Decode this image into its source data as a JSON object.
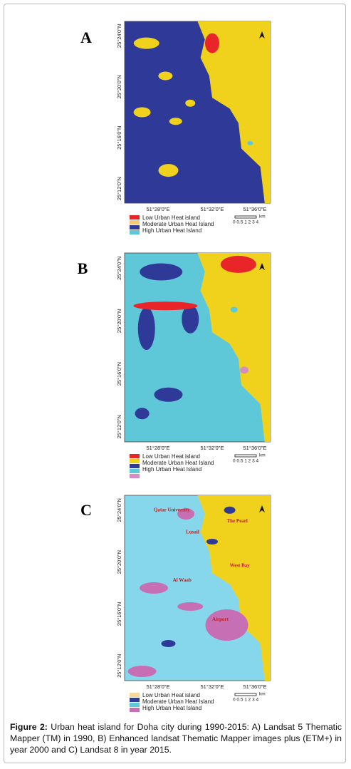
{
  "panels": [
    {
      "label": "A",
      "y_ticks": [
        "25°24'0\"N",
        "25°20'0\"N",
        "25°16'0\"N",
        "25°12'0\"N"
      ],
      "x_ticks": [
        "51°28'0\"E",
        "51°32'0\"E",
        "51°36'0\"E"
      ],
      "legend": [
        "Low Urban Heat island",
        "Moderate Urban Heat Island",
        "High Urban Heat Island"
      ],
      "scale": {
        "unit": "km",
        "labels": "0 0.5 1 2 3 4"
      }
    },
    {
      "label": "B",
      "y_ticks": [
        "25°24'0\"N",
        "25°20'0\"N",
        "25°16'0\"N",
        "25°12'0\"N"
      ],
      "x_ticks": [
        "51°28'0\"E",
        "51°32'0\"E",
        "51°36'0\"E"
      ],
      "legend": [
        "Low Urban Heat island",
        "Moderate Urban Heat Island",
        "High Urban Heat Island"
      ],
      "scale": {
        "unit": "km",
        "labels": "0 0.5 1 2 3 4"
      }
    },
    {
      "label": "C",
      "y_ticks": [
        "25°24'0\"N",
        "25°20'0\"N",
        "25°16'0\"N",
        "25°12'0\"N"
      ],
      "x_ticks": [
        "51°28'0\"E",
        "51°32'0\"E",
        "51°36'0\"E"
      ],
      "legend": [
        "Low Urban Heat island",
        "Moderate Urban Heat Island",
        "High Urban Heat Island"
      ],
      "scale": {
        "unit": "km",
        "labels": "0 0.5 1 2 3 4"
      },
      "map_labels": [
        "Qatar University",
        "Lusail",
        "The Pearl",
        "West Bay",
        "Al Waab",
        "Airport"
      ]
    }
  ],
  "caption": {
    "label": "Figure 2:",
    "text": "Urban heat island for Doha city during 1990-2015: A) Landsat 5 Thematic Mapper (TM) in 1990, B) Enhanced landsat Thematic Mapper images plus (ETM+) in year 2000 and C) Landsat 8 in year 2015."
  }
}
